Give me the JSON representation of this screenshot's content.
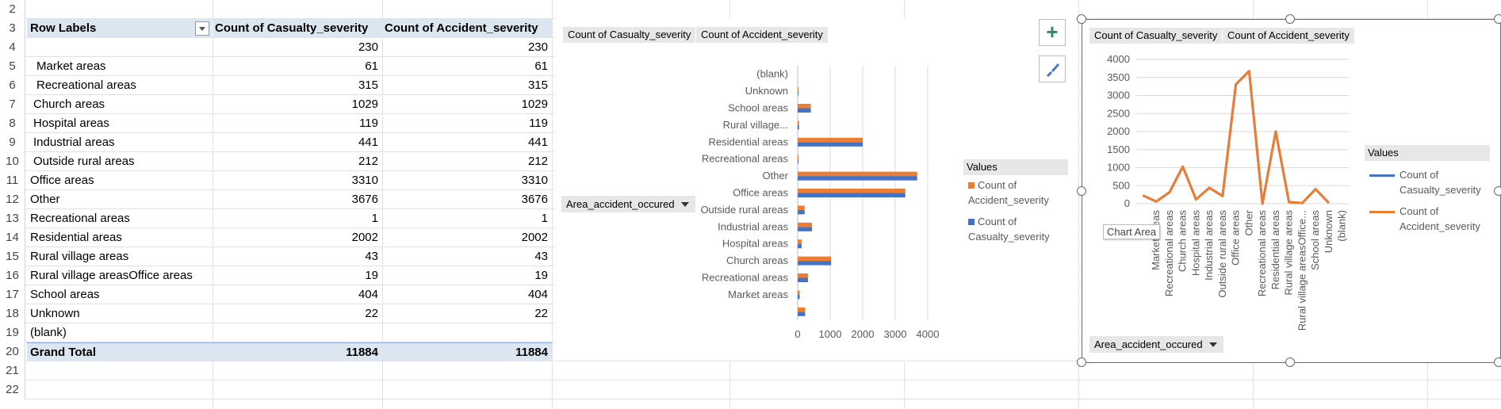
{
  "sheet": {
    "row_numbers": [
      "2",
      "3",
      "4",
      "5",
      "6",
      "7",
      "8",
      "9",
      "10",
      "11",
      "12",
      "13",
      "14",
      "15",
      "16",
      "17",
      "18",
      "19",
      "20",
      "21",
      "22"
    ],
    "header": {
      "row_labels": "Row Labels",
      "col1": "Count of Casualty_severity",
      "col2": "Count of Accident_severity"
    },
    "rows": [
      {
        "label": "",
        "v1": "230",
        "v2": "230",
        "indent": 0
      },
      {
        "label": "Market areas",
        "v1": "61",
        "v2": "61",
        "indent": 2
      },
      {
        "label": "Recreational areas",
        "v1": "315",
        "v2": "315",
        "indent": 2
      },
      {
        "label": "Church areas",
        "v1": "1029",
        "v2": "1029",
        "indent": 1
      },
      {
        "label": "Hospital areas",
        "v1": "119",
        "v2": "119",
        "indent": 1
      },
      {
        "label": "Industrial areas",
        "v1": "441",
        "v2": "441",
        "indent": 1
      },
      {
        "label": "Outside rural areas",
        "v1": "212",
        "v2": "212",
        "indent": 1
      },
      {
        "label": "Office areas",
        "v1": "3310",
        "v2": "3310",
        "indent": 0
      },
      {
        "label": "Other",
        "v1": "3676",
        "v2": "3676",
        "indent": 0
      },
      {
        "label": "Recreational areas",
        "v1": "1",
        "v2": "1",
        "indent": 0
      },
      {
        "label": "Residential areas",
        "v1": "2002",
        "v2": "2002",
        "indent": 0
      },
      {
        "label": "Rural village areas",
        "v1": "43",
        "v2": "43",
        "indent": 0
      },
      {
        "label": "Rural village areasOffice areas",
        "v1": "19",
        "v2": "19",
        "indent": 0
      },
      {
        "label": "School areas",
        "v1": "404",
        "v2": "404",
        "indent": 0
      },
      {
        "label": "Unknown",
        "v1": "22",
        "v2": "22",
        "indent": 0
      },
      {
        "label": "(blank)",
        "v1": "",
        "v2": "",
        "indent": 0
      }
    ],
    "total": {
      "label": "Grand Total",
      "v1": "11884",
      "v2": "11884"
    }
  },
  "chart1": {
    "btn_casualty": "Count of Casualty_severity",
    "btn_accident": "Count of Accident_severity",
    "axis_field_button": "Area_accident_occured",
    "legend_title": "Values",
    "legend": [
      "Count of Accident_severity",
      "Count of Casualty_severity"
    ],
    "add_icon": "plus-icon",
    "style_icon": "brush-icon"
  },
  "chart2": {
    "btn_casualty": "Count of Casualty_severity",
    "btn_accident": "Count of Accident_severity",
    "axis_field_button": "Area_accident_occured",
    "legend_title": "Values",
    "legend": [
      "Count of Casualty_severity",
      "Count of Accident_severity"
    ],
    "tooltip": "Chart Area"
  },
  "colors": {
    "series_casualty": "#4472c4",
    "series_accident": "#ed7d31",
    "header_fill": "#dce6f1"
  },
  "chart_data": [
    {
      "type": "bar",
      "orientation": "horizontal",
      "categories": [
        "",
        "Market areas",
        "Recreational areas",
        "Church areas",
        "Hospital areas",
        "Industrial areas",
        "Outside rural areas",
        "Office areas",
        "Other",
        "Recreational areas",
        "Residential areas",
        "Rural village...",
        "School areas",
        "Unknown",
        "(blank)"
      ],
      "series": [
        {
          "name": "Count of Casualty_severity",
          "values": [
            230,
            61,
            315,
            1029,
            119,
            441,
            212,
            3310,
            3676,
            1,
            2002,
            43,
            404,
            22,
            0
          ]
        },
        {
          "name": "Count of Accident_severity",
          "values": [
            230,
            61,
            315,
            1029,
            119,
            441,
            212,
            3310,
            3676,
            1,
            2002,
            43,
            404,
            22,
            0
          ]
        }
      ],
      "xticks": [
        "0",
        "1000",
        "2000",
        "3000",
        "4000"
      ],
      "xlim": [
        0,
        4000
      ],
      "grid": true,
      "legend_position": "right"
    },
    {
      "type": "line",
      "categories": [
        "",
        "Market areas",
        "Recreational areas",
        "Church areas",
        "Hospital areas",
        "Industrial areas",
        "Outside rural areas",
        "Office areas",
        "Other",
        "Recreational areas",
        "Residential areas",
        "Rural village areas",
        "Rural village areasOffice...",
        "School areas",
        "Unknown",
        "(blank)"
      ],
      "series": [
        {
          "name": "Count of Casualty_severity",
          "values": [
            230,
            61,
            315,
            1029,
            119,
            441,
            212,
            3310,
            3676,
            1,
            2002,
            43,
            19,
            404,
            22,
            null
          ]
        },
        {
          "name": "Count of Accident_severity",
          "values": [
            230,
            61,
            315,
            1029,
            119,
            441,
            212,
            3310,
            3676,
            1,
            2002,
            43,
            19,
            404,
            22,
            null
          ]
        }
      ],
      "yticks": [
        "4000",
        "3500",
        "3000",
        "2500",
        "2000",
        "1500",
        "1000",
        "500",
        "0"
      ],
      "ylim": [
        0,
        4000
      ],
      "grid": true,
      "legend_position": "right"
    }
  ]
}
